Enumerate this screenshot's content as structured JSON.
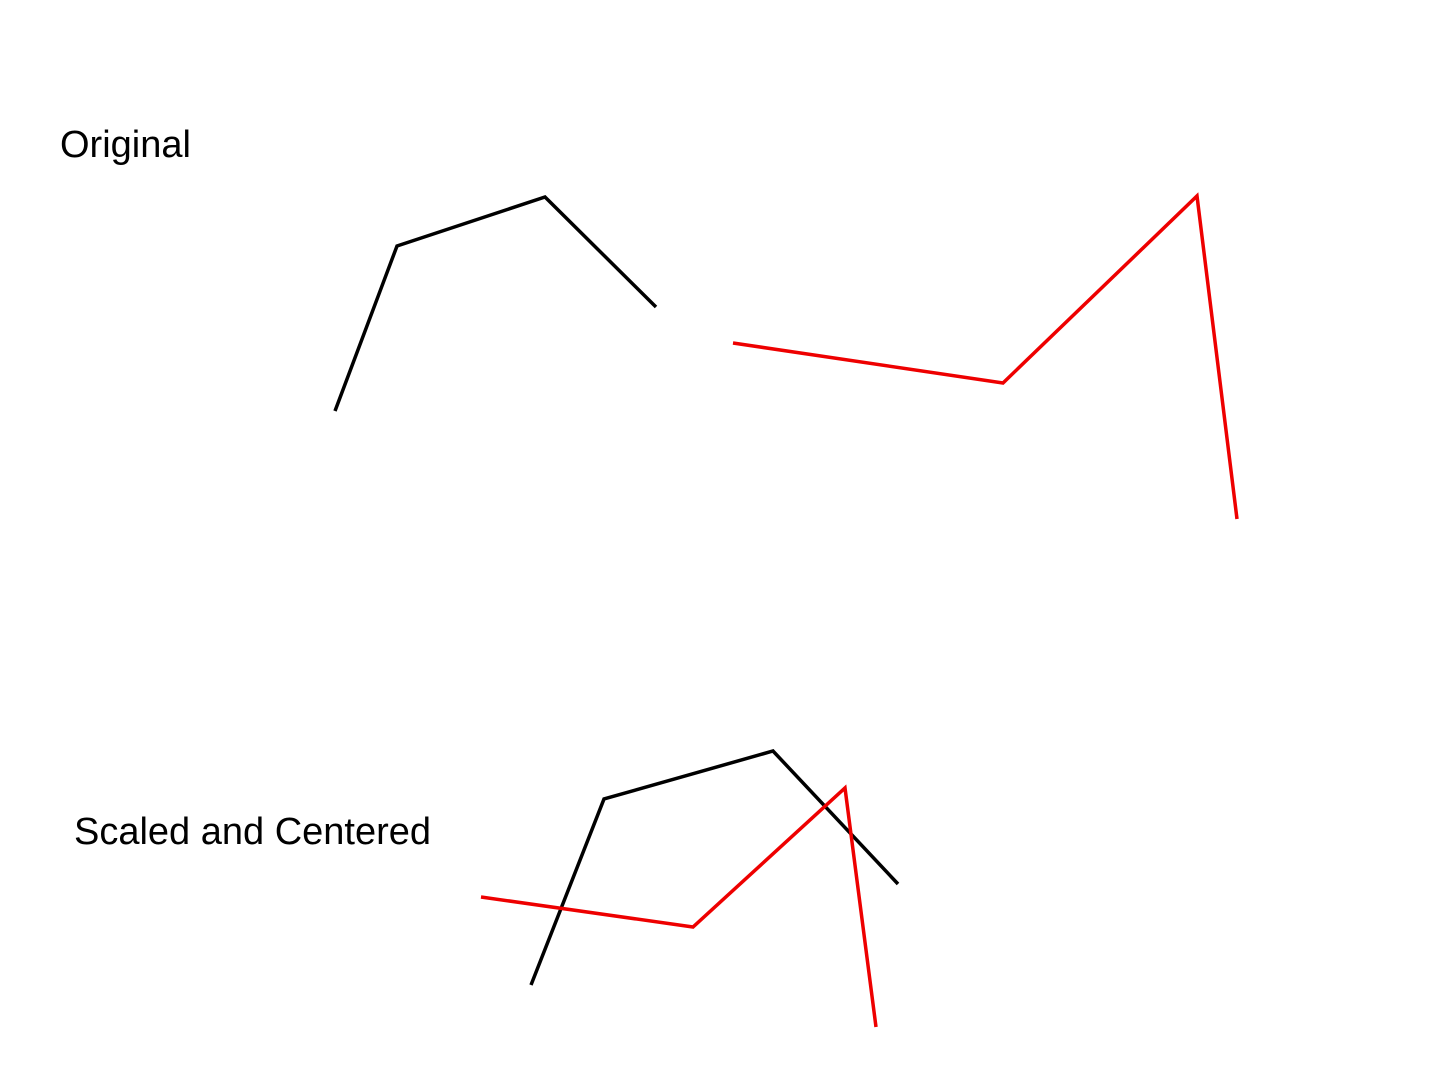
{
  "labels": {
    "original": "Original",
    "scaled": "Scaled and Centered"
  },
  "colors": {
    "shape_a": "#000000",
    "shape_b": "#ee0000"
  }
}
